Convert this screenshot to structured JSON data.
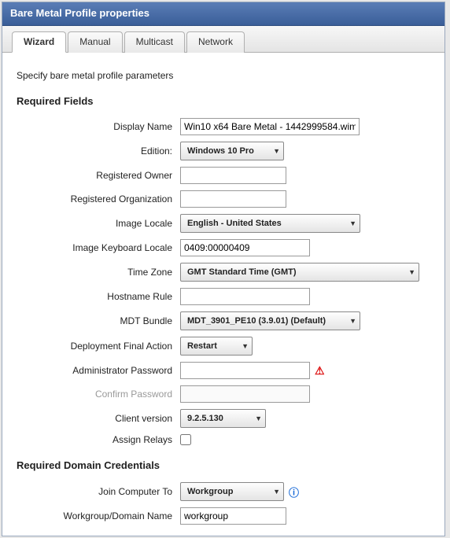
{
  "window": {
    "title": "Bare Metal Profile properties"
  },
  "tabs": {
    "wizard": "Wizard",
    "manual": "Manual",
    "multicast": "Multicast",
    "network": "Network"
  },
  "intro": "Specify bare metal profile parameters",
  "sections": {
    "required": "Required Fields",
    "domain": "Required Domain Credentials"
  },
  "labels": {
    "displayName": "Display Name",
    "edition": "Edition:",
    "regOwner": "Registered Owner",
    "regOrg": "Registered Organization",
    "imageLocale": "Image Locale",
    "kbLocale": "Image Keyboard Locale",
    "timeZone": "Time Zone",
    "hostnameRule": "Hostname Rule",
    "mdtBundle": "MDT Bundle",
    "finalAction": "Deployment Final Action",
    "adminPassword": "Administrator Password",
    "confirmPassword": "Confirm Password",
    "clientVersion": "Client version",
    "assignRelays": "Assign Relays",
    "joinComputerTo": "Join Computer To",
    "workgroupName": "Workgroup/Domain Name"
  },
  "values": {
    "displayName": "Win10 x64 Bare Metal - 1442999584.wim",
    "edition": "Windows 10 Pro",
    "regOwner": "",
    "regOrg": "",
    "imageLocale": "English - United States",
    "kbLocale": "0409:00000409",
    "timeZone": "GMT Standard Time (GMT)",
    "hostnameRule": "",
    "mdtBundle": "MDT_3901_PE10 (3.9.01) (Default)",
    "finalAction": "Restart",
    "adminPassword": "",
    "confirmPassword": "",
    "clientVersion": "9.2.5.130",
    "joinComputerTo": "Workgroup",
    "workgroupName": "workgroup"
  }
}
